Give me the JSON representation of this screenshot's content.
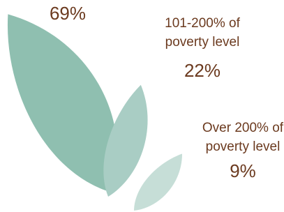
{
  "chart_data": {
    "type": "leaf",
    "categories": [
      null,
      "101-200% of poverty level",
      "Over 200% of poverty level"
    ],
    "values": [
      69,
      22,
      9
    ],
    "value_labels": [
      "69%",
      "22%",
      "9%"
    ],
    "colors": [
      "#8fbfb0",
      "#a9cdc4",
      "#c6ded7"
    ]
  }
}
